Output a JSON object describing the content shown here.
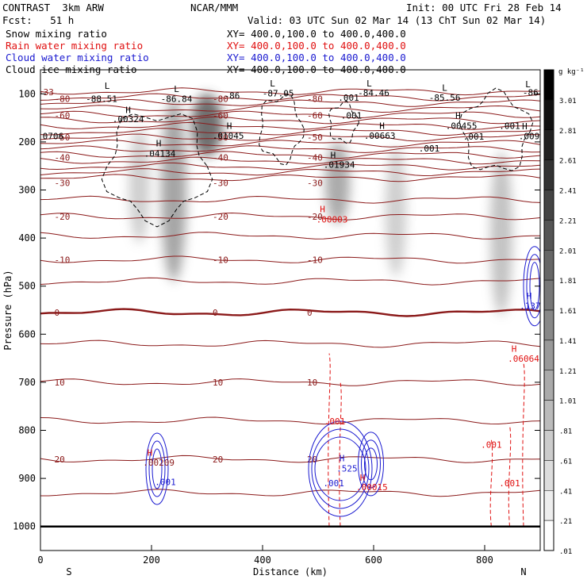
{
  "header": {
    "title": "CONTRAST  3km ARW",
    "center": "NCAR/MMM",
    "init": "Init: 00 UTC Fri 28 Feb 14",
    "fcst": "Fcst:   51 h",
    "valid": "Valid: 03 UTC Sun 02 Mar 14 (13 ChT Sun 02 Mar 14)"
  },
  "fields": [
    {
      "label": "Snow mixing ratio",
      "xy": "XY= 400.0,100.0 to 400.0,400.0",
      "color": "#000000"
    },
    {
      "label": "Rain water mixing ratio",
      "xy": "XY= 400.0,100.0 to 400.0,400.0",
      "color": "#e01010"
    },
    {
      "label": "Cloud water mixing ratio",
      "xy": "XY= 400.0,100.0 to 400.0,400.0",
      "color": "#1a1ad0"
    },
    {
      "label": "Cloud ice mixing ratio",
      "xy": "XY= 400.0,100.0 to 400.0,400.0",
      "color": "#000000"
    }
  ],
  "chart_data": {
    "type": "heatmap",
    "xlabel": "Distance (km)",
    "ylabel": "Pressure (hPa)",
    "xlim": [
      0,
      900
    ],
    "ylim": [
      1050,
      50
    ],
    "x_ticks": [
      "0",
      "200",
      "400",
      "600",
      "800"
    ],
    "y_ticks": [
      "100",
      "200",
      "300",
      "400",
      "500",
      "600",
      "700",
      "800",
      "900",
      "1000"
    ],
    "end_labels": {
      "left": "S",
      "right": "N"
    },
    "colorbar": {
      "unit": "g kg⁻¹",
      "labels": [
        ".01",
        ".21",
        ".41",
        ".61",
        ".81",
        "1.01",
        "1.21",
        "1.41",
        "1.61",
        "1.81",
        "2.01",
        "2.21",
        "2.41",
        "2.61",
        "2.81",
        "3.01"
      ]
    },
    "snow_cores": [
      {
        "x": 178,
        "p_top": 170,
        "p_bot": 410,
        "peak": 0.8
      },
      {
        "x": 240,
        "p_top": 110,
        "p_bot": 490,
        "peak": 1.5
      },
      {
        "x": 300,
        "p_top": 100,
        "p_bot": 230,
        "peak": 2.4
      },
      {
        "x": 535,
        "p_top": 200,
        "p_bot": 370,
        "peak": 1.4
      },
      {
        "x": 640,
        "p_top": 210,
        "p_bot": 480,
        "peak": 0.8
      },
      {
        "x": 830,
        "p_top": 220,
        "p_bot": 560,
        "peak": 1.0
      }
    ],
    "temperature_contours": [
      {
        "label": "-80",
        "p": 110
      },
      {
        "label": "-60",
        "p": 145
      },
      {
        "label": "-50",
        "p": 190
      },
      {
        "label": "-40",
        "p": 232
      },
      {
        "label": "-30",
        "p": 285
      },
      {
        "label": "-20",
        "p": 355
      },
      {
        "label": "-10",
        "p": 445
      },
      {
        "label": "0",
        "p": 555
      },
      {
        "label": "10",
        "p": 700
      },
      {
        "label": "20",
        "p": 860
      }
    ],
    "annotations": [
      {
        "text": "-33",
        "x": 10,
        "p": 96,
        "color": "#8b1a1a"
      },
      {
        "text": "-88.51",
        "x": 110,
        "p": 110,
        "color": "#000000"
      },
      {
        "text": "L",
        "x": 120,
        "p": 83,
        "color": "#000000"
      },
      {
        "text": "-86.84",
        "x": 245,
        "p": 110,
        "color": "#000000"
      },
      {
        "text": "L",
        "x": 245,
        "p": 90,
        "color": "#000000"
      },
      {
        "text": "-86",
        "x": 345,
        "p": 104,
        "color": "#000000"
      },
      {
        "text": "-87.05",
        "x": 428,
        "p": 99,
        "color": "#000000"
      },
      {
        "text": "L",
        "x": 418,
        "p": 78,
        "color": "#000000"
      },
      {
        "text": "-84.46",
        "x": 600,
        "p": 98,
        "color": "#000000"
      },
      {
        "text": "L",
        "x": 592,
        "p": 78,
        "color": "#000000"
      },
      {
        "text": "-85.56",
        "x": 728,
        "p": 108,
        "color": "#000000"
      },
      {
        "text": "L",
        "x": 728,
        "p": 87,
        "color": "#000000"
      },
      {
        "text": "-86.2",
        "x": 892,
        "p": 97,
        "color": "#000000"
      },
      {
        "text": "L",
        "x": 878,
        "p": 80,
        "color": "#000000"
      },
      {
        "text": ".00324",
        "x": 158,
        "p": 152,
        "color": "#000000"
      },
      {
        "text": "H",
        "x": 158,
        "p": 133,
        "color": "#000000"
      },
      {
        "text": ".0706",
        "x": 18,
        "p": 188,
        "color": "#000000"
      },
      {
        "text": "H",
        "x": 213,
        "p": 203,
        "color": "#000000"
      },
      {
        "text": ".04134",
        "x": 215,
        "p": 224,
        "color": "#000000"
      },
      {
        "text": "H",
        "x": 340,
        "p": 166,
        "color": "#000000"
      },
      {
        "text": ".01045",
        "x": 338,
        "p": 187,
        "color": "#000000"
      },
      {
        "text": "H",
        "x": 527,
        "p": 227,
        "color": "#000000"
      },
      {
        "text": ".01934",
        "x": 538,
        "p": 247,
        "color": "#000000"
      },
      {
        "text": "H",
        "x": 615,
        "p": 166,
        "color": "#000000"
      },
      {
        "text": ".00663",
        "x": 611,
        "p": 187,
        "color": "#000000"
      },
      {
        "text": "H",
        "x": 752,
        "p": 145,
        "color": "#000000"
      },
      {
        "text": ".00455",
        "x": 758,
        "p": 166,
        "color": "#000000"
      },
      {
        "text": "H",
        "x": 872,
        "p": 167,
        "color": "#000000"
      },
      {
        "text": ".009",
        "x": 880,
        "p": 188,
        "color": "#000000"
      },
      {
        "text": ".001",
        "x": 560,
        "p": 145,
        "color": "#000000"
      },
      {
        "text": ".001",
        "x": 555,
        "p": 108,
        "color": "#000000"
      },
      {
        "text": ".001",
        "x": 700,
        "p": 213,
        "color": "#000000"
      },
      {
        "text": ".001",
        "x": 780,
        "p": 189,
        "color": "#000000"
      },
      {
        "text": ".001",
        "x": 845,
        "p": 166,
        "color": "#000000"
      },
      {
        "text": "H",
        "x": 508,
        "p": 340,
        "color": "#e01010"
      },
      {
        "text": ".00003",
        "x": 525,
        "p": 361,
        "color": "#e01010"
      },
      {
        "text": "H",
        "x": 880,
        "p": 520,
        "color": "#1a1ad0"
      },
      {
        "text": ".137",
        "x": 882,
        "p": 541,
        "color": "#1a1ad0"
      },
      {
        "text": "H",
        "x": 853,
        "p": 630,
        "color": "#e01010"
      },
      {
        "text": ".06064",
        "x": 870,
        "p": 651,
        "color": "#e01010"
      },
      {
        "text": ".001",
        "x": 530,
        "p": 781,
        "color": "#e01010"
      },
      {
        "text": ".001",
        "x": 812,
        "p": 830,
        "color": "#e01010"
      },
      {
        "text": "H",
        "x": 197,
        "p": 846,
        "color": "#e01010"
      },
      {
        "text": ".00209",
        "x": 213,
        "p": 867,
        "color": "#8b1a1a"
      },
      {
        "text": ".001",
        "x": 225,
        "p": 907,
        "color": "#1a1ad0"
      },
      {
        "text": "H",
        "x": 543,
        "p": 858,
        "color": "#1a1ad0"
      },
      {
        "text": ".525",
        "x": 552,
        "p": 879,
        "color": "#1a1ad0"
      },
      {
        "text": ".001",
        "x": 528,
        "p": 910,
        "color": "#1a1ad0"
      },
      {
        "text": "H",
        "x": 580,
        "p": 898,
        "color": "#e01010"
      },
      {
        "text": ".00015",
        "x": 597,
        "p": 918,
        "color": "#e01010"
      },
      {
        "text": ".001",
        "x": 845,
        "p": 910,
        "color": "#e01010"
      }
    ]
  }
}
